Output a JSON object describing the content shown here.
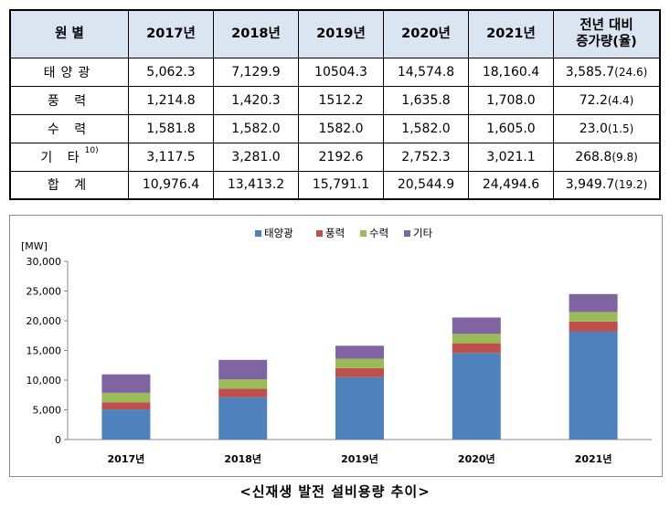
{
  "table": {
    "headers": [
      "원 별",
      "2017년",
      "2018년",
      "2019년",
      "2020년",
      "2021년",
      "전년 대비",
      "증가량(율)"
    ],
    "rows": [
      {
        "label": "태양광",
        "sup": "",
        "values": [
          "5,062.3",
          "7,129.9",
          "10504.3",
          "14,574.8",
          "18,160.4"
        ],
        "diff": "3,585.7",
        "rate": "(24.6)"
      },
      {
        "label": "풍 력",
        "sup": "",
        "values": [
          "1,214.8",
          "1,420.3",
          "1512.2",
          "1,635.8",
          "1,708.0"
        ],
        "diff": "72.2",
        "rate": "(4.4)"
      },
      {
        "label": "수 력",
        "sup": "",
        "values": [
          "1,581.8",
          "1,582.0",
          "1582.0",
          "1,582.0",
          "1,605.0"
        ],
        "diff": "23.0",
        "rate": "(1.5)"
      },
      {
        "label": "기 타",
        "sup": "10)",
        "values": [
          "3,117.5",
          "3,281.0",
          "2192.6",
          "2,752.3",
          "3,021.1"
        ],
        "diff": "268.8",
        "rate": "(9.8)"
      },
      {
        "label": "합 계",
        "sup": "",
        "values": [
          "10,976.4",
          "13,413.2",
          "15,791.1",
          "20,544.9",
          "24,494.6"
        ],
        "diff": "3,949.7",
        "rate": "(19.2)"
      }
    ]
  },
  "chart_data": {
    "type": "bar",
    "stacked": true,
    "categories": [
      "2017년",
      "2018년",
      "2019년",
      "2020년",
      "2021년"
    ],
    "series": [
      {
        "name": "태양광",
        "color": "#4f81bd",
        "values": [
          5062.3,
          7129.9,
          10504.3,
          14574.8,
          18160.4
        ]
      },
      {
        "name": "풍력",
        "color": "#c0504d",
        "values": [
          1214.8,
          1420.3,
          1512.2,
          1635.8,
          1708.0
        ]
      },
      {
        "name": "수력",
        "color": "#9bbb59",
        "values": [
          1581.8,
          1582.0,
          1582.0,
          1582.0,
          1605.0
        ]
      },
      {
        "name": "기타",
        "color": "#8064a2",
        "values": [
          3117.5,
          3281.0,
          2192.6,
          2752.3,
          3021.1
        ]
      }
    ],
    "ylabel": "[MW]",
    "ylim": [
      0,
      30000
    ],
    "yticks": [
      0,
      5000,
      10000,
      15000,
      20000,
      25000,
      30000
    ],
    "ytick_labels": [
      "0",
      "5,000",
      "10,000",
      "15,000",
      "20,000",
      "25,000",
      "30,000"
    ],
    "legend_position": "top",
    "grid": false
  },
  "caption": "<신재생 발전 설비용량 추이>"
}
